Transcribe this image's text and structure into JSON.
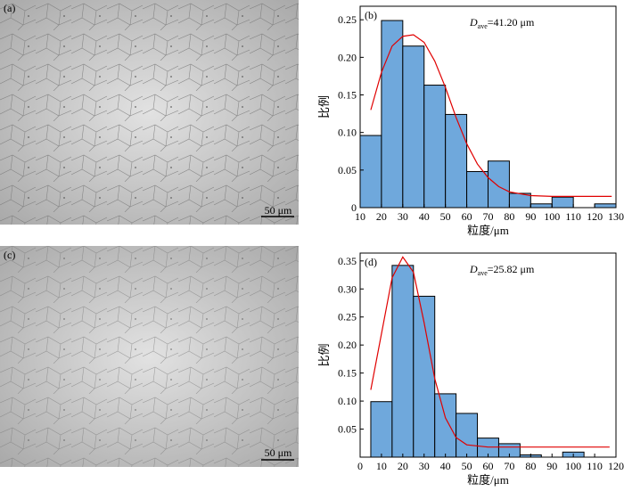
{
  "micrographs": [
    {
      "label": "(a)",
      "scale_bar": "50 μm"
    },
    {
      "label": "(c)",
      "scale_bar": "50 μm"
    }
  ],
  "chart_data": [
    {
      "type": "histogram",
      "label": "(b)",
      "annotation": {
        "symbol": "D",
        "subscript": "ave",
        "text": "=41.20 μm"
      },
      "xlabel": "粒度/μm",
      "ylabel": "比例",
      "bins": [
        10,
        20,
        30,
        40,
        50,
        60,
        70,
        80,
        90,
        100,
        110,
        120,
        130
      ],
      "values": [
        0.096,
        0.249,
        0.215,
        0.163,
        0.124,
        0.048,
        0.062,
        0.019,
        0.005,
        0.014,
        0,
        0.005
      ],
      "color": "#6fa8dc",
      "fit": {
        "color": "#e00000",
        "x": [
          15,
          20,
          25,
          30,
          35,
          40,
          45,
          50,
          55,
          60,
          65,
          70,
          75,
          80,
          90,
          100,
          110,
          128
        ],
        "values": [
          0.13,
          0.18,
          0.215,
          0.228,
          0.23,
          0.22,
          0.195,
          0.16,
          0.12,
          0.085,
          0.058,
          0.04,
          0.028,
          0.021,
          0.016,
          0.015,
          0.015,
          0.015
        ]
      },
      "xlim": [
        10,
        130
      ],
      "xticks": [
        10,
        20,
        30,
        40,
        50,
        60,
        70,
        80,
        90,
        100,
        110,
        120,
        130
      ],
      "ylim": [
        0,
        0.268
      ],
      "yticks": [
        0,
        0.05,
        {
          "value": 0.1,
          "label": "0.10"
        },
        0.15,
        {
          "value": 0.2,
          "label": "0.20"
        },
        0.25
      ]
    },
    {
      "type": "histogram",
      "label": "(d)",
      "annotation": {
        "symbol": "D",
        "subscript": "ave",
        "text": "=25.82 μm"
      },
      "xlabel": "粒度/μm",
      "ylabel": "比例",
      "bins": [
        5,
        15,
        25,
        35,
        45,
        55,
        65,
        75,
        85,
        95,
        105,
        115
      ],
      "values": [
        0.099,
        0.342,
        0.287,
        0.113,
        0.078,
        0.034,
        0.024,
        0.004,
        0,
        0.009,
        0
      ],
      "color": "#6fa8dc",
      "fit": {
        "color": "#e00000",
        "x": [
          5,
          10,
          15,
          20,
          25,
          30,
          35,
          40,
          45,
          50,
          60,
          70,
          80,
          90,
          100,
          117
        ],
        "values": [
          0.12,
          0.22,
          0.32,
          0.357,
          0.33,
          0.24,
          0.14,
          0.07,
          0.035,
          0.022,
          0.018,
          0.018,
          0.018,
          0.018,
          0.018,
          0.018
        ]
      },
      "xlim": [
        0,
        120
      ],
      "xticks": [
        0,
        10,
        20,
        30,
        40,
        50,
        60,
        70,
        80,
        90,
        100,
        110,
        120
      ],
      "ylim": [
        0,
        0.364
      ],
      "yticks": [
        0.05,
        {
          "value": 0.1,
          "label": "0.10"
        },
        0.15,
        {
          "value": 0.2,
          "label": "0.20"
        },
        0.25,
        {
          "value": 0.3,
          "label": "0.30"
        },
        0.35
      ]
    }
  ]
}
